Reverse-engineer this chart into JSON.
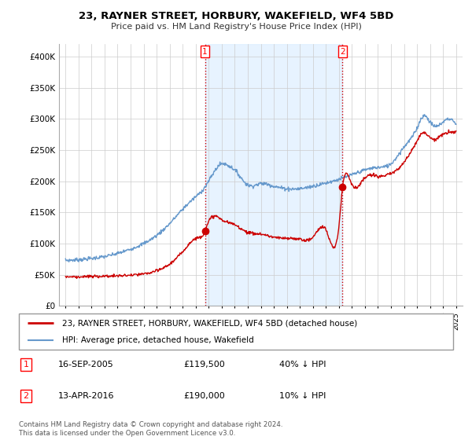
{
  "title": "23, RAYNER STREET, HORBURY, WAKEFIELD, WF4 5BD",
  "subtitle": "Price paid vs. HM Land Registry's House Price Index (HPI)",
  "legend_line1": "23, RAYNER STREET, HORBURY, WAKEFIELD, WF4 5BD (detached house)",
  "legend_line2": "HPI: Average price, detached house, Wakefield",
  "transaction1_date": "16-SEP-2005",
  "transaction1_price": "£119,500",
  "transaction1_hpi": "40% ↓ HPI",
  "transaction1_year": 2005.71,
  "transaction1_value": 119500,
  "transaction2_date": "13-APR-2016",
  "transaction2_price": "£190,000",
  "transaction2_hpi": "10% ↓ HPI",
  "transaction2_year": 2016.28,
  "transaction2_value": 190000,
  "footnote": "Contains HM Land Registry data © Crown copyright and database right 2024.\nThis data is licensed under the Open Government Licence v3.0.",
  "price_color": "#cc0000",
  "hpi_color": "#6699cc",
  "hpi_fill_color": "#ddeeff",
  "vline_color": "#cc0000",
  "background_color": "#ffffff",
  "ylim": [
    0,
    420000
  ],
  "yticks": [
    0,
    50000,
    100000,
    150000,
    200000,
    250000,
    300000,
    350000,
    400000
  ],
  "xlim_start": 1994.5,
  "xlim_end": 2025.5,
  "years_start": 1995,
  "years_end": 2025,
  "hpi_knots_x": [
    1995,
    1996,
    1997,
    1998,
    1999,
    2000,
    2001,
    2002,
    2003,
    2004,
    2005,
    2005.5,
    2006,
    2007,
    2007.5,
    2008,
    2008.5,
    2009,
    2010,
    2011,
    2012,
    2013,
    2014,
    2015,
    2016,
    2017,
    2018,
    2019,
    2020,
    2021,
    2022,
    2022.5,
    2023,
    2023.5,
    2024,
    2024.5,
    2025
  ],
  "hpi_knots_y": [
    73000,
    74000,
    76000,
    79000,
    84000,
    91000,
    100000,
    113000,
    132000,
    155000,
    175000,
    185000,
    200000,
    228000,
    225000,
    218000,
    205000,
    194000,
    196000,
    192000,
    188000,
    188000,
    192000,
    197000,
    203000,
    210000,
    218000,
    222000,
    228000,
    255000,
    285000,
    305000,
    295000,
    288000,
    295000,
    300000,
    290000
  ],
  "prop_knots_x": [
    1995,
    1996,
    1997,
    1998,
    1999,
    2000,
    2001,
    2002,
    2003,
    2004,
    2005,
    2005.71,
    2006,
    2007,
    2008,
    2009,
    2010,
    2011,
    2012,
    2013,
    2014,
    2015,
    2016,
    2016.28,
    2017,
    2018,
    2019,
    2020,
    2021,
    2022,
    2022.5,
    2023,
    2023.5,
    2024,
    2024.5,
    2025
  ],
  "prop_knots_y": [
    47000,
    46500,
    47000,
    47500,
    48000,
    49000,
    51000,
    56000,
    67000,
    87000,
    108000,
    119500,
    135000,
    138000,
    130000,
    118000,
    115000,
    110000,
    108000,
    107000,
    110000,
    122000,
    128000,
    190000,
    195000,
    205000,
    208000,
    212000,
    230000,
    265000,
    278000,
    270000,
    268000,
    275000,
    278000,
    280000
  ]
}
